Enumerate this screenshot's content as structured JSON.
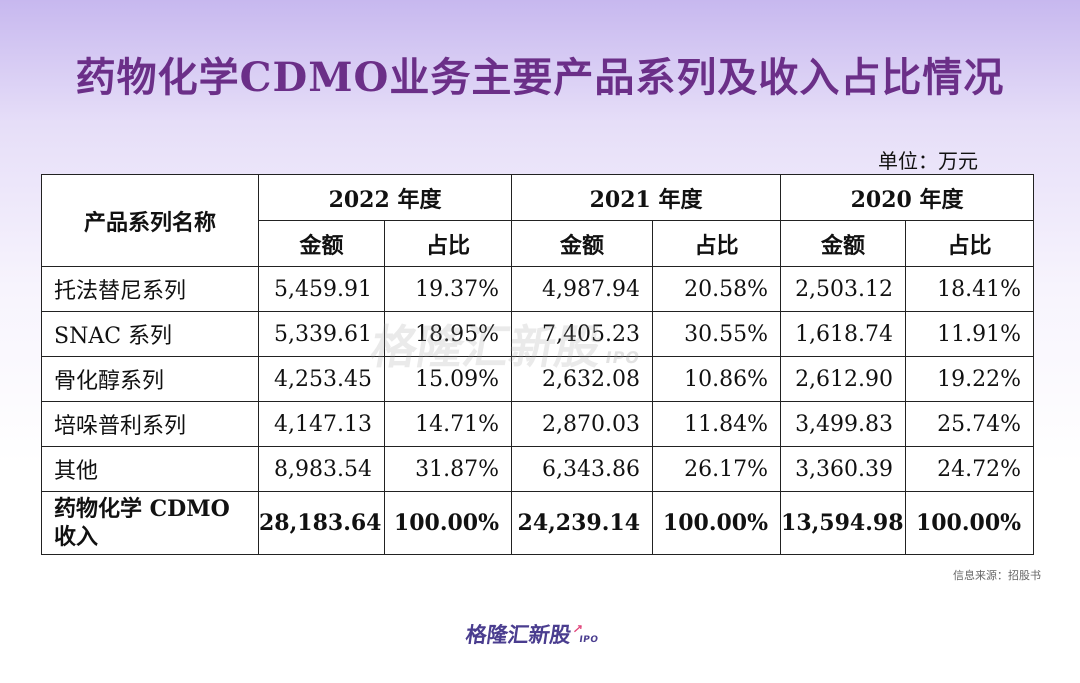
{
  "title": "药物化学CDMO业务主要产品系列及收入占比情况",
  "unit": "单位：万元",
  "watermark": {
    "text": "格隆汇新股",
    "suffix": "IPO"
  },
  "source": "信息来源：招股书",
  "logo": {
    "text": "格隆汇新股",
    "arrow_icon": "up-arrow-icon",
    "suffix": "IPO",
    "color": "#4a3d8f",
    "accent": "#e0447a"
  },
  "colors": {
    "title": "#6b2f88",
    "background_top": "#c7b8ef"
  },
  "chart_data": {
    "type": "table",
    "corner_header": "产品系列名称",
    "years": [
      "2022 年度",
      "2021 年度",
      "2020 年度"
    ],
    "sub_headers": [
      "金额",
      "占比"
    ],
    "rows": [
      {
        "name": "托法替尼系列",
        "cells": [
          "5,459.91",
          "19.37%",
          "4,987.94",
          "20.58%",
          "2,503.12",
          "18.41%"
        ]
      },
      {
        "name": "SNAC 系列",
        "cells": [
          "5,339.61",
          "18.95%",
          "7,405.23",
          "30.55%",
          "1,618.74",
          "11.91%"
        ]
      },
      {
        "name": "骨化醇系列",
        "cells": [
          "4,253.45",
          "15.09%",
          "2,632.08",
          "10.86%",
          "2,612.90",
          "19.22%"
        ]
      },
      {
        "name": "培哚普利系列",
        "cells": [
          "4,147.13",
          "14.71%",
          "2,870.03",
          "11.84%",
          "3,499.83",
          "25.74%"
        ]
      },
      {
        "name": "其他",
        "cells": [
          "8,983.54",
          "31.87%",
          "6,343.86",
          "26.17%",
          "3,360.39",
          "24.72%"
        ]
      }
    ],
    "total": {
      "name": "药物化学 CDMO 收入",
      "cells": [
        "28,183.64",
        "100.00%",
        "24,239.14",
        "100.00%",
        "13,594.98",
        "100.00%"
      ]
    }
  }
}
